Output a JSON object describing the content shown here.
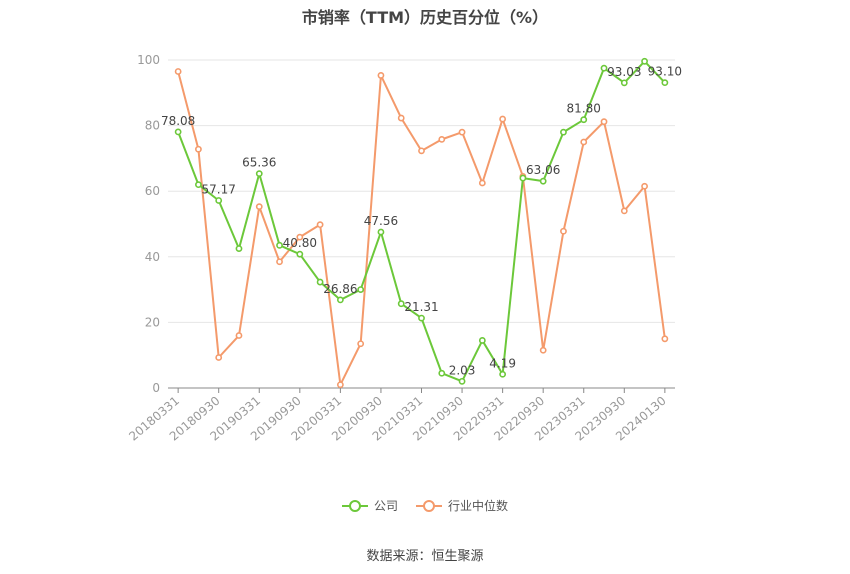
{
  "chart_data": {
    "type": "line",
    "title": "市销率（TTM）历史百分位（%）",
    "x": [
      "20180331",
      "20180630",
      "20180930",
      "20181231",
      "20190331",
      "20190630",
      "20190930",
      "20191231",
      "20200331",
      "20200630",
      "20200930",
      "20201231",
      "20210331",
      "20210630",
      "20210930",
      "20211231",
      "20220331",
      "20220630",
      "20220930",
      "20221231",
      "20230331",
      "20230630",
      "20230930",
      "20231231",
      "20240130"
    ],
    "x_tick_labels": [
      "20180331",
      "20180930",
      "20190331",
      "20190930",
      "20200331",
      "20200930",
      "20210331",
      "20210930",
      "20220331",
      "20220930",
      "20230331",
      "20230930",
      "20240130"
    ],
    "ylim": [
      0,
      100
    ],
    "y_ticks": [
      0,
      20,
      40,
      60,
      80,
      100
    ],
    "grid": true,
    "series": [
      {
        "name": "公司",
        "color": "#6cc83a",
        "values": [
          78.08,
          62.0,
          57.17,
          42.5,
          65.36,
          43.5,
          40.8,
          32.3,
          26.86,
          30.0,
          47.56,
          25.7,
          21.31,
          4.5,
          2.03,
          14.5,
          4.19,
          64.0,
          63.06,
          78.0,
          81.8,
          97.5,
          93.03,
          99.6,
          93.1
        ]
      },
      {
        "name": "行业中位数",
        "color": "#f49a6b",
        "values": [
          96.5,
          72.8,
          9.3,
          16.0,
          55.3,
          38.5,
          46.0,
          49.8,
          1.0,
          13.5,
          95.3,
          82.3,
          72.3,
          75.8,
          78.0,
          62.5,
          82.0,
          64.5,
          11.5,
          47.8,
          75.0,
          81.2,
          54.0,
          61.5,
          15.0
        ]
      }
    ],
    "data_labels": [
      {
        "index": 0,
        "text": "78.08"
      },
      {
        "index": 2,
        "text": "57.17"
      },
      {
        "index": 4,
        "text": "65.36"
      },
      {
        "index": 6,
        "text": "40.80"
      },
      {
        "index": 8,
        "text": "26.86"
      },
      {
        "index": 10,
        "text": "47.56"
      },
      {
        "index": 12,
        "text": "21.31"
      },
      {
        "index": 14,
        "text": "2.03"
      },
      {
        "index": 16,
        "text": "4.19"
      },
      {
        "index": 18,
        "text": "63.06"
      },
      {
        "index": 20,
        "text": "81.80"
      },
      {
        "index": 22,
        "text": "93.03"
      },
      {
        "index": 24,
        "text": "93.10"
      }
    ],
    "legend_position": "bottom-center"
  },
  "legend": {
    "company_label": "公司",
    "industry_label": "行业中位数"
  },
  "source": "数据来源：恒生聚源"
}
